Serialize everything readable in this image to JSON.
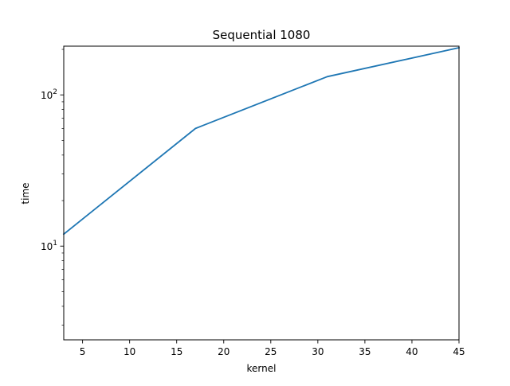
{
  "chart_data": {
    "type": "line",
    "title": "Sequential 1080",
    "xlabel": "kernel",
    "ylabel": "time",
    "xlim": [
      3,
      45
    ],
    "ylim": [
      2.4,
      210
    ],
    "yscale": "log",
    "grid": false,
    "legend": "none",
    "x_ticks": [
      5,
      10,
      15,
      20,
      25,
      30,
      35,
      40,
      45
    ],
    "x_tick_labels": [
      "5",
      "10",
      "15",
      "20",
      "25",
      "30",
      "35",
      "40",
      "45"
    ],
    "y_major_ticks": [
      10,
      100
    ],
    "y_major_tick_labels": [
      {
        "base": "10",
        "exp": "1"
      },
      {
        "base": "10",
        "exp": "2"
      }
    ],
    "y_minor_ticks": [
      3,
      4,
      5,
      6,
      7,
      8,
      9,
      20,
      30,
      40,
      50,
      60,
      70,
      80,
      90,
      200
    ],
    "series": [
      {
        "color": "#1f77b4",
        "x": [
          3,
          17,
          31,
          45
        ],
        "y": [
          12,
          60,
          132,
          205
        ]
      }
    ]
  }
}
